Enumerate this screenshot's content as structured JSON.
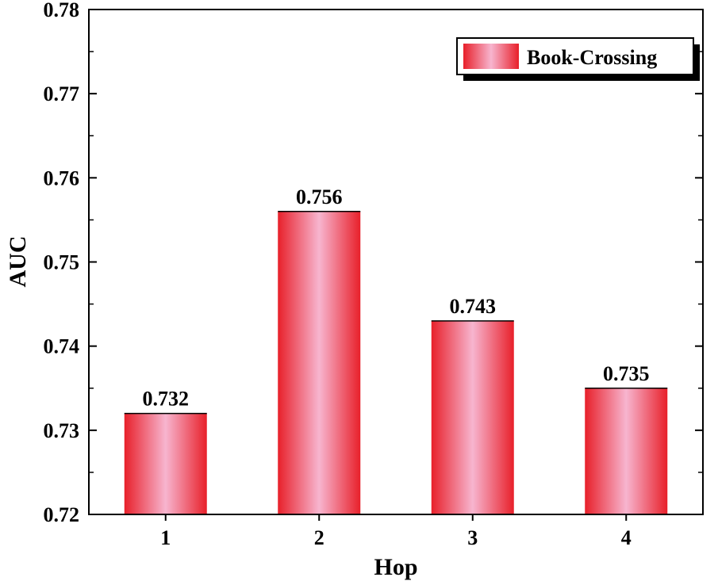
{
  "chart_data": {
    "type": "bar",
    "title": "",
    "xlabel": "Hop",
    "ylabel": "AUC",
    "categories": [
      "1",
      "2",
      "3",
      "4"
    ],
    "series": [
      {
        "name": "Book-Crossing",
        "values": [
          0.732,
          0.756,
          0.743,
          0.735
        ]
      }
    ],
    "data_labels": [
      "0.732",
      "0.756",
      "0.743",
      "0.735"
    ],
    "ylim": [
      0.72,
      0.78
    ],
    "yticks": [
      "0.72",
      "0.73",
      "0.74",
      "0.75",
      "0.76",
      "0.77",
      "0.78"
    ],
    "grid": false,
    "legend_position": "top-right",
    "colors": {
      "bar_edge": "#e8202a",
      "bar_center": "#f7b5cf",
      "axis": "#000000"
    }
  }
}
